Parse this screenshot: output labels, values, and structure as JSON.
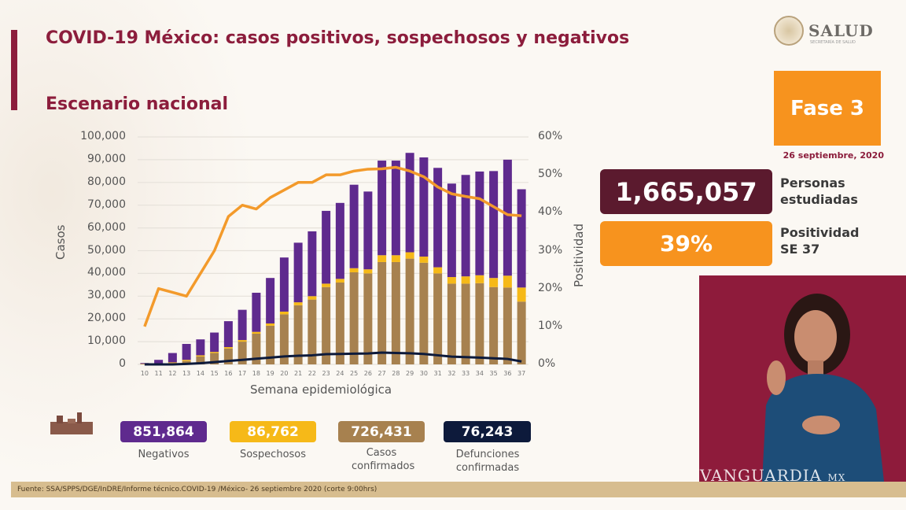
{
  "header": {
    "title": "COVID-19 México: casos positivos, sospechosos y negativos",
    "subtitle": "Escenario nacional"
  },
  "logo": {
    "text": "SALUD",
    "subtext": "SECRETARÍA DE SALUD"
  },
  "phase": {
    "label": "Fase 3",
    "date": "26 septiembre, 2020",
    "color": "#f7931e"
  },
  "stats": [
    {
      "value": "1,665,057",
      "label_line1": "Personas",
      "label_line2": "estudiadas",
      "color": "#5b1a2e"
    },
    {
      "value": "39%",
      "label_line1": "Positividad",
      "label_line2": "SE 37",
      "color": "#f7931e"
    }
  ],
  "legend": [
    {
      "value": "851,864",
      "label": "Negativos",
      "color": "#5f2a8e"
    },
    {
      "value": "86,762",
      "label": "Sospechosos",
      "color": "#f6b918"
    },
    {
      "value": "726,431",
      "label": "Casos confirmados",
      "color": "#a7814f"
    },
    {
      "value": "76,243",
      "label": "Defunciones confirmadas",
      "color": "#0d1a3b"
    }
  ],
  "footer": "Fuente: SSA/SPPS/DGE/InDRE/Informe técnico.COVID-19 /México- 26 septiembre 2020 (corte 9:00hrs)",
  "watermark": "VANGUARDIA",
  "watermark_suffix": "MX",
  "chart_data": {
    "type": "bar",
    "stacked": true,
    "xlabel": "Semana epidemiológica",
    "ylabel": "Casos",
    "y2label": "Positividad",
    "ylim": [
      0,
      100000
    ],
    "y2lim": [
      0,
      60
    ],
    "yticks": [
      "0",
      "10,000",
      "20,000",
      "30,000",
      "40,000",
      "50,000",
      "60,000",
      "70,000",
      "80,000",
      "90,000",
      "100,000"
    ],
    "y2ticks": [
      "0%",
      "10%",
      "20%",
      "30%",
      "40%",
      "50%",
      "60%"
    ],
    "grid": true,
    "categories": [
      "10",
      "11",
      "12",
      "13",
      "14",
      "15",
      "16",
      "17",
      "18",
      "19",
      "20",
      "21",
      "22",
      "23",
      "24",
      "25",
      "26",
      "27",
      "28",
      "29",
      "30",
      "31",
      "32",
      "33",
      "34",
      "35",
      "36",
      "37"
    ],
    "series": [
      {
        "name": "Casos confirmados",
        "type": "bar",
        "color": "#a7814f",
        "values": [
          200,
          300,
          600,
          1500,
          3500,
          5000,
          7000,
          10000,
          13500,
          17000,
          22000,
          26000,
          28500,
          34000,
          36000,
          40500,
          40000,
          45000,
          45000,
          46500,
          44700,
          40000,
          35500,
          35500,
          35700,
          34000,
          33800,
          27600
        ]
      },
      {
        "name": "Sospechosos",
        "type": "bar",
        "color": "#f6b918",
        "values": [
          100,
          200,
          300,
          500,
          500,
          500,
          600,
          700,
          800,
          1000,
          1200,
          1300,
          1500,
          1500,
          1600,
          1800,
          1800,
          3000,
          3000,
          2800,
          2700,
          2700,
          2900,
          3200,
          3500,
          4000,
          5200,
          6200
        ]
      },
      {
        "name": "Negativos",
        "type": "bar",
        "color": "#5f2a8e",
        "values": [
          300,
          1500,
          4100,
          7000,
          7000,
          8500,
          11400,
          13300,
          17200,
          20000,
          23800,
          26200,
          28500,
          32000,
          33400,
          36700,
          34200,
          41600,
          41600,
          43700,
          43600,
          43700,
          41100,
          44600,
          45600,
          47000,
          51000,
          43200
        ]
      },
      {
        "name": "Defunciones confirmadas",
        "type": "line",
        "color": "#0d1a3b",
        "values": [
          0,
          0,
          0,
          200,
          500,
          1000,
          1500,
          2000,
          2500,
          3000,
          3500,
          3800,
          4000,
          4500,
          4600,
          4700,
          4800,
          5200,
          5000,
          4900,
          4600,
          4000,
          3400,
          3200,
          3000,
          2700,
          2400,
          1300
        ]
      },
      {
        "name": "Positividad",
        "type": "line",
        "axis": "right",
        "color": "#f39a2b",
        "values": [
          10,
          20,
          19,
          18,
          24,
          30,
          39,
          42,
          41,
          44,
          46,
          48,
          48,
          50,
          50,
          51,
          51.5,
          51.6,
          52,
          51,
          49.5,
          46.8,
          45,
          44.3,
          43.7,
          41.6,
          39.5,
          39.2
        ]
      }
    ]
  }
}
